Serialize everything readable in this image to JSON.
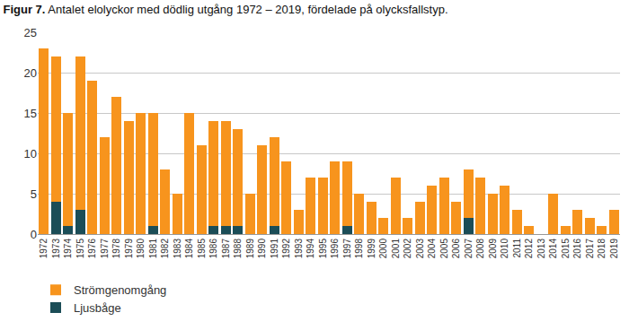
{
  "chart_data": {
    "type": "bar",
    "title": "Figur 7. Antalet elolyckor med dödlig utgång 1972 – 2019, fördelade på olycksfallstyp.",
    "stacked": true,
    "categories": [
      "1972",
      "1973",
      "1974",
      "1975",
      "1976",
      "1977",
      "1978",
      "1979",
      "1980",
      "1981",
      "1982",
      "1983",
      "1984",
      "1985",
      "1986",
      "1987",
      "1988",
      "1989",
      "1990",
      "1991",
      "1992",
      "1993",
      "1994",
      "1995",
      "1996",
      "1997",
      "1998",
      "1999",
      "2000",
      "2001",
      "2002",
      "2003",
      "2004",
      "2005",
      "2006",
      "2007",
      "2008",
      "2009",
      "2010",
      "2011",
      "2012",
      "2013",
      "2014",
      "2015",
      "2016",
      "2017",
      "2018",
      "2019"
    ],
    "series": [
      {
        "name": "Strömgenomgång",
        "color": "#f7941d",
        "values": [
          23,
          18,
          14,
          19,
          19,
          12,
          17,
          14,
          15,
          14,
          8,
          5,
          15,
          11,
          13,
          13,
          12,
          5,
          11,
          11,
          9,
          3,
          7,
          7,
          9,
          8,
          5,
          4,
          2,
          7,
          2,
          4,
          6,
          7,
          4,
          6,
          7,
          5,
          6,
          3,
          1,
          0,
          5,
          1,
          3,
          2,
          1,
          3
        ]
      },
      {
        "name": "Ljusbåge",
        "color": "#1b4d57",
        "values": [
          0,
          4,
          1,
          3,
          0,
          0,
          0,
          0,
          0,
          1,
          0,
          0,
          0,
          0,
          1,
          1,
          1,
          0,
          0,
          1,
          0,
          0,
          0,
          0,
          0,
          1,
          0,
          0,
          0,
          0,
          0,
          0,
          0,
          0,
          0,
          2,
          0,
          0,
          0,
          0,
          0,
          0,
          0,
          0,
          0,
          0,
          0,
          0
        ]
      }
    ],
    "ylim": [
      0,
      25
    ],
    "yticks": [
      0,
      5,
      10,
      15,
      20,
      25
    ],
    "grid": true,
    "legend": "bottom left"
  }
}
